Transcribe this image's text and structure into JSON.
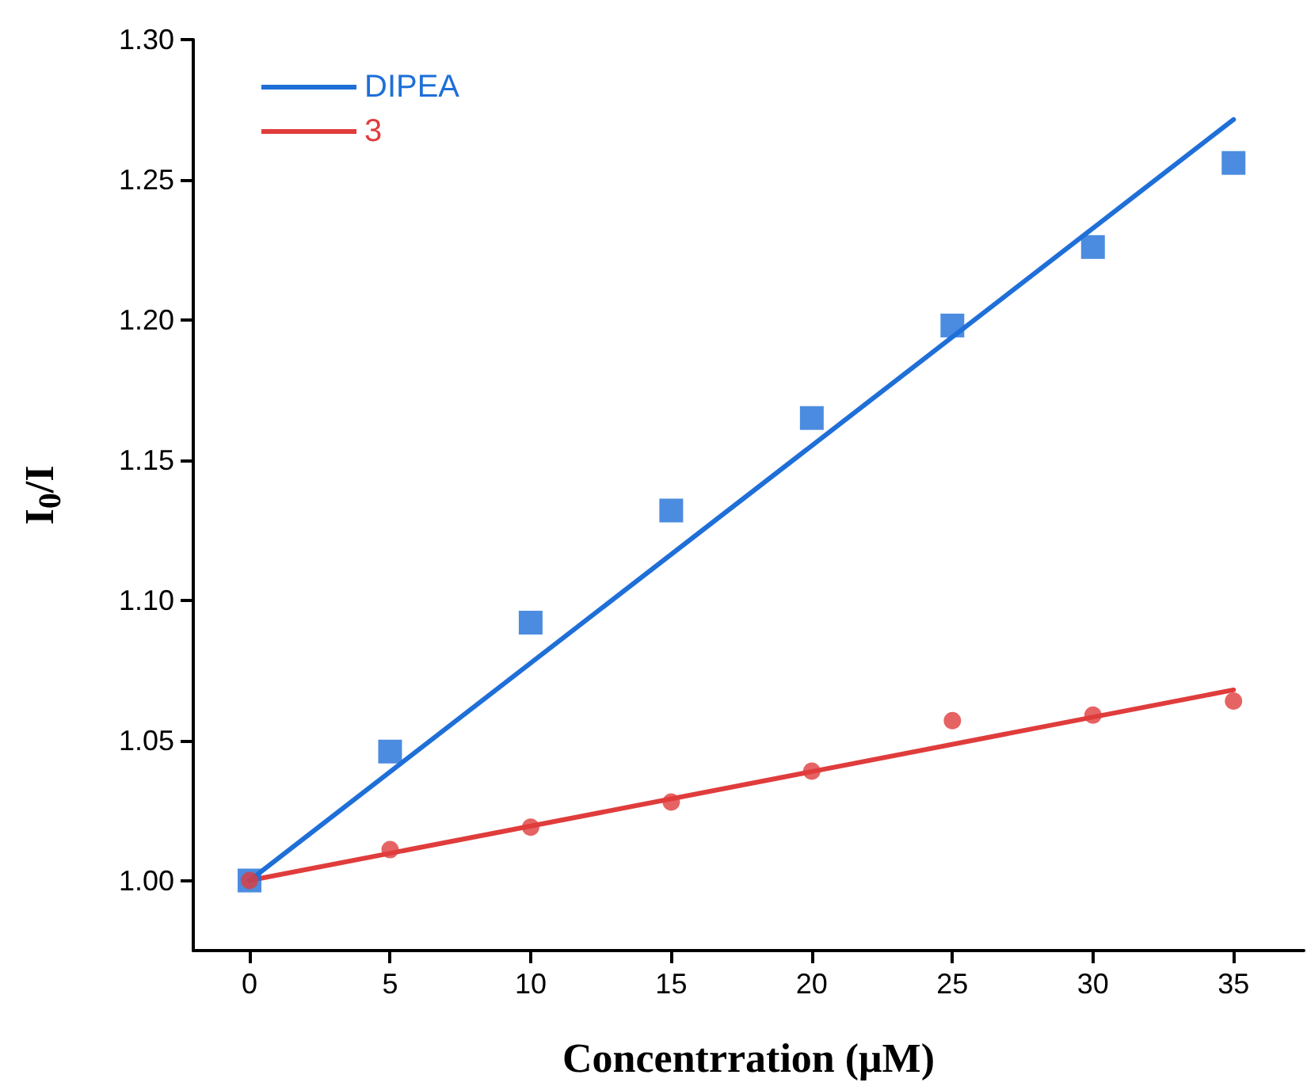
{
  "chart_data": {
    "type": "scatter",
    "xlabel": "Concentrration (μM)",
    "ylabel": "I$_{0}$/I",
    "xlim": [
      -2,
      37.5
    ],
    "xticks": [
      0,
      5,
      10,
      15,
      20,
      25,
      30,
      35
    ],
    "ylim": [
      0.975,
      1.3
    ],
    "yticks": [
      {
        "value": 1,
        "label": "1.00"
      },
      1.05,
      {
        "value": 1.1,
        "label": "1.10"
      },
      1.15,
      {
        "value": 1.2,
        "label": "1.20"
      },
      1.25,
      {
        "value": 1.3,
        "label": "1.30"
      }
    ],
    "grid": false,
    "legend": "top left",
    "series": [
      {
        "marker": "square",
        "color": "#1f6fd8",
        "x": [
          0,
          5,
          10,
          15,
          20,
          25,
          30,
          35
        ],
        "values": [
          1.0,
          1.046,
          1.092,
          1.132,
          1.165,
          1.198,
          1.226,
          1.256
        ]
      },
      {
        "marker": "circle",
        "color": "#e03c3c",
        "x": [
          0,
          5,
          10,
          15,
          20,
          25,
          30,
          35
        ],
        "values": [
          1.0,
          1.011,
          1.019,
          1.028,
          1.039,
          1.057,
          1.059,
          1.064
        ]
      },
      {
        "type": "line",
        "name": "DIPEA",
        "color": "#1f6fd8",
        "x": [
          0,
          35
        ],
        "values": [
          1.0,
          1.2715
        ]
      },
      {
        "type": "line",
        "name": "3",
        "color": "#e03c3c",
        "x": [
          0,
          35
        ],
        "values": [
          1.0,
          1.068
        ]
      }
    ]
  }
}
